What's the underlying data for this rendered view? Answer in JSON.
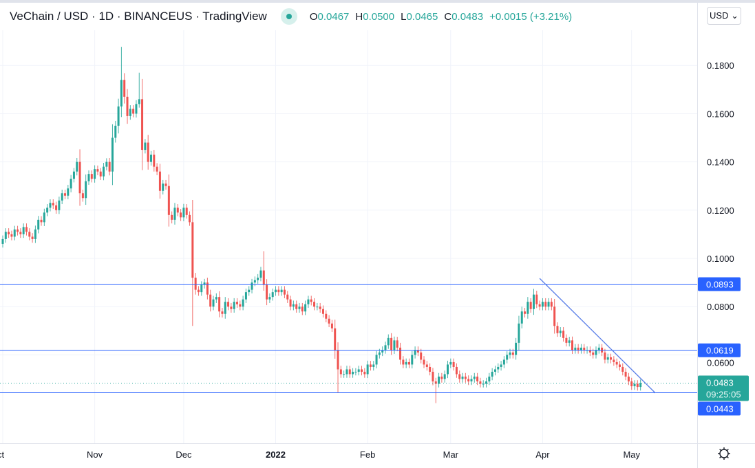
{
  "header": {
    "title": "VeChain / USD · 1D · BINANCEUS · TradingView",
    "ohlc": [
      {
        "key": "O",
        "value": "0.0467"
      },
      {
        "key": "H",
        "value": "0.0500"
      },
      {
        "key": "L",
        "value": "0.0465"
      },
      {
        "key": "C",
        "value": "0.0483"
      }
    ],
    "change": "+0.0015 (+3.21%)",
    "currency_button": "USD ⌄",
    "status_color": "#26a69a"
  },
  "chart_data": {
    "type": "candlestick",
    "interval": "1D",
    "start_date": "2021-10-01",
    "ylim": [
      0.028,
      0.1915
    ],
    "price_ticks": [
      "0.1800",
      "0.1600",
      "0.1400",
      "0.1200",
      "0.1000",
      "0.0800",
      "0.0600"
    ],
    "time_ticks": [
      {
        "label": "ct",
        "date": "2021-10-01"
      },
      {
        "label": "Nov",
        "date": "2021-11-01"
      },
      {
        "label": "Dec",
        "date": "2021-12-01"
      },
      {
        "label": "2022",
        "date": "2022-01-01",
        "bold": true
      },
      {
        "label": "Feb",
        "date": "2022-02-01"
      },
      {
        "label": "Mar",
        "date": "2022-03-01"
      },
      {
        "label": "Apr",
        "date": "2022-04-01"
      },
      {
        "label": "May",
        "date": "2022-05-01"
      }
    ],
    "colors": {
      "up": "#26a69a",
      "down": "#ef5350",
      "lines": "#2962ff",
      "trendline": "#5b7fe8"
    },
    "close": [
      0.108,
      0.111,
      0.11,
      0.109,
      0.112,
      0.111,
      0.11,
      0.113,
      0.111,
      0.109,
      0.108,
      0.112,
      0.116,
      0.115,
      0.119,
      0.121,
      0.123,
      0.122,
      0.12,
      0.124,
      0.127,
      0.126,
      0.129,
      0.133,
      0.136,
      0.14,
      0.127,
      0.125,
      0.132,
      0.135,
      0.133,
      0.137,
      0.136,
      0.134,
      0.138,
      0.14,
      0.136,
      0.15,
      0.155,
      0.163,
      0.174,
      0.167,
      0.159,
      0.162,
      0.16,
      0.164,
      0.166,
      0.145,
      0.148,
      0.14,
      0.143,
      0.138,
      0.136,
      0.128,
      0.131,
      0.13,
      0.118,
      0.116,
      0.121,
      0.119,
      0.117,
      0.121,
      0.118,
      0.115,
      0.092,
      0.087,
      0.086,
      0.089,
      0.09,
      0.085,
      0.08,
      0.083,
      0.084,
      0.078,
      0.077,
      0.082,
      0.08,
      0.079,
      0.082,
      0.081,
      0.08,
      0.083,
      0.086,
      0.087,
      0.09,
      0.091,
      0.092,
      0.095,
      0.089,
      0.083,
      0.084,
      0.086,
      0.087,
      0.086,
      0.087,
      0.085,
      0.083,
      0.08,
      0.081,
      0.079,
      0.08,
      0.078,
      0.081,
      0.083,
      0.082,
      0.08,
      0.08,
      0.079,
      0.077,
      0.075,
      0.073,
      0.071,
      0.062,
      0.054,
      0.052,
      0.052,
      0.054,
      0.052,
      0.053,
      0.053,
      0.054,
      0.053,
      0.052,
      0.056,
      0.055,
      0.056,
      0.06,
      0.061,
      0.062,
      0.064,
      0.067,
      0.062,
      0.066,
      0.063,
      0.058,
      0.056,
      0.057,
      0.056,
      0.06,
      0.062,
      0.061,
      0.058,
      0.056,
      0.055,
      0.053,
      0.049,
      0.048,
      0.051,
      0.05,
      0.052,
      0.056,
      0.057,
      0.055,
      0.052,
      0.05,
      0.051,
      0.05,
      0.049,
      0.05,
      0.051,
      0.049,
      0.048,
      0.048,
      0.049,
      0.051,
      0.053,
      0.054,
      0.055,
      0.056,
      0.058,
      0.06,
      0.061,
      0.06,
      0.065,
      0.073,
      0.078,
      0.077,
      0.082,
      0.079,
      0.085,
      0.081,
      0.08,
      0.082,
      0.08,
      0.082,
      0.08,
      0.072,
      0.069,
      0.07,
      0.067,
      0.065,
      0.066,
      0.062,
      0.063,
      0.062,
      0.063,
      0.062,
      0.062,
      0.061,
      0.06,
      0.062,
      0.063,
      0.061,
      0.058,
      0.059,
      0.058,
      0.057,
      0.056,
      0.055,
      0.053,
      0.051,
      0.049,
      0.047,
      0.048,
      0.0467,
      0.0483
    ],
    "notable_highs": [
      {
        "date": "2021-11-10",
        "high": 0.1877
      },
      {
        "date": "2021-11-16",
        "high": 0.177
      },
      {
        "date": "2021-12-28",
        "high": 0.103
      }
    ],
    "notable_lows": [
      {
        "date": "2021-12-04",
        "low": 0.072
      },
      {
        "date": "2022-02-24",
        "low": 0.04
      },
      {
        "date": "2022-01-22",
        "low": 0.0445
      }
    ],
    "horizontal_lines": [
      {
        "price": 0.0893,
        "label": "0.0893"
      },
      {
        "price": 0.0619,
        "label": "0.0619"
      },
      {
        "price": 0.0443,
        "label": "0.0443"
      }
    ],
    "trendline": {
      "start": {
        "date": "2022-03-31",
        "price": 0.0917
      },
      "end": {
        "date": "2022-05-09",
        "price": 0.0442
      }
    },
    "last_price": {
      "price": 0.0483,
      "label": "0.0483",
      "countdown": "09:25:05"
    }
  }
}
